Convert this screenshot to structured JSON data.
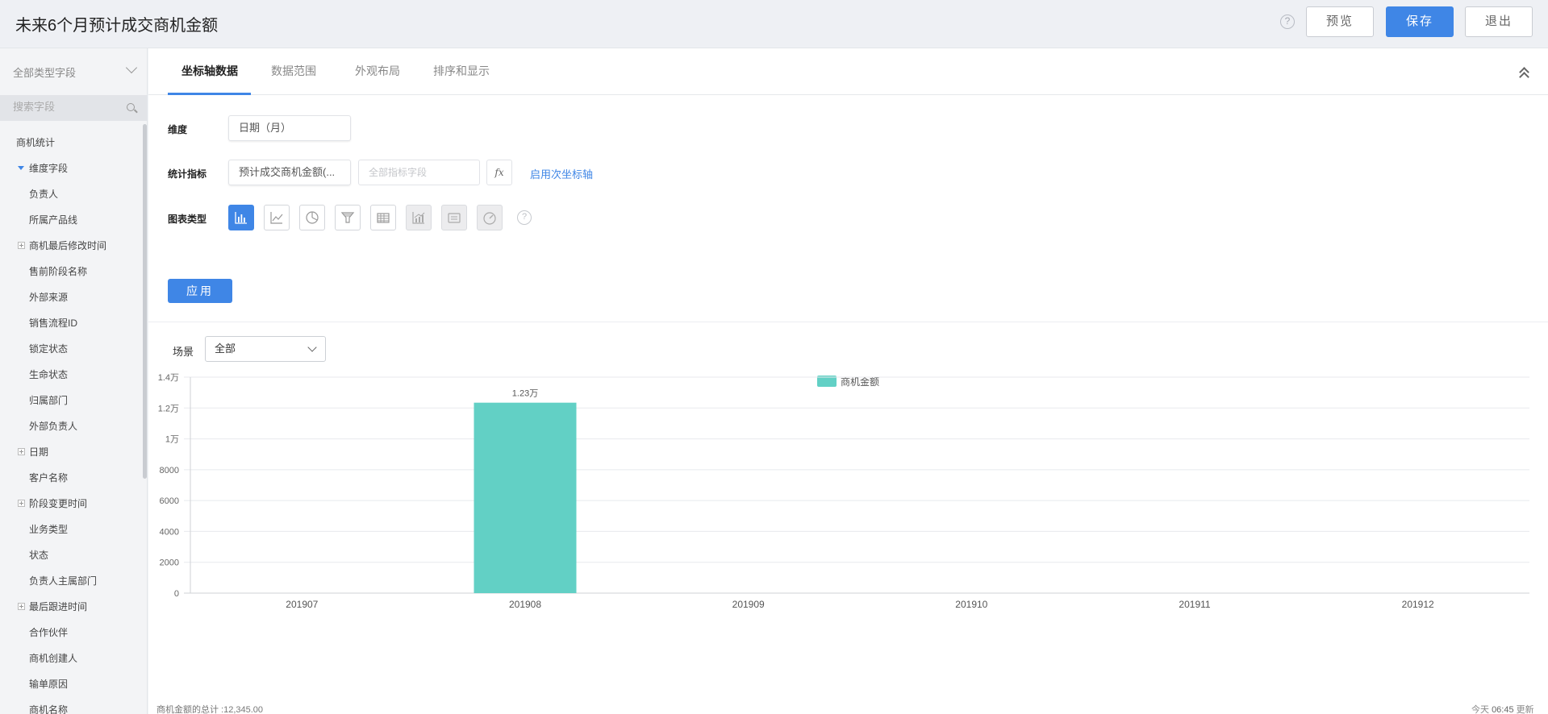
{
  "header": {
    "title": "未来6个月预计成交商机金额",
    "help": "?",
    "preview_label": "预览",
    "save_label": "保存",
    "exit_label": "退出"
  },
  "sidebar": {
    "type_select": "全部类型字段",
    "search_placeholder": "搜索字段",
    "items": [
      {
        "label": "商机统计",
        "kind": "root"
      },
      {
        "label": "维度字段",
        "kind": "expanded"
      },
      {
        "label": "负责人",
        "kind": "leaf"
      },
      {
        "label": "所属产品线",
        "kind": "leaf"
      },
      {
        "label": "商机最后修改时间",
        "kind": "collapsed"
      },
      {
        "label": "售前阶段名称",
        "kind": "leaf"
      },
      {
        "label": "外部来源",
        "kind": "leaf"
      },
      {
        "label": "销售流程ID",
        "kind": "leaf"
      },
      {
        "label": "锁定状态",
        "kind": "leaf"
      },
      {
        "label": "生命状态",
        "kind": "leaf"
      },
      {
        "label": "归属部门",
        "kind": "leaf"
      },
      {
        "label": "外部负责人",
        "kind": "leaf"
      },
      {
        "label": "日期",
        "kind": "collapsed"
      },
      {
        "label": "客户名称",
        "kind": "leaf"
      },
      {
        "label": "阶段变更时间",
        "kind": "collapsed"
      },
      {
        "label": "业务类型",
        "kind": "leaf"
      },
      {
        "label": "状态",
        "kind": "leaf"
      },
      {
        "label": "负责人主属部门",
        "kind": "leaf"
      },
      {
        "label": "最后跟进时间",
        "kind": "collapsed"
      },
      {
        "label": "合作伙伴",
        "kind": "leaf"
      },
      {
        "label": "商机创建人",
        "kind": "leaf"
      },
      {
        "label": "输单原因",
        "kind": "leaf"
      },
      {
        "label": "商机名称",
        "kind": "leaf"
      }
    ]
  },
  "tabs": [
    {
      "label": "坐标轴数据",
      "active": true
    },
    {
      "label": "数据范围",
      "active": false
    },
    {
      "label": "外观布局",
      "active": false
    },
    {
      "label": "排序和显示",
      "active": false
    }
  ],
  "form": {
    "dimension_label": "维度",
    "dimension_value": "日期（月）",
    "metric_label": "统计指标",
    "metric_value": "预计成交商机金额(...",
    "metric_field_placeholder": "全部指标字段",
    "fx_label": "fx",
    "secondary_axis_link": "启用次坐标轴",
    "chart_type_label": "图表类型",
    "chart_types": [
      {
        "icon": "bar-chart-icon",
        "state": "active"
      },
      {
        "icon": "line-chart-icon",
        "state": "normal"
      },
      {
        "icon": "pie-chart-icon",
        "state": "normal"
      },
      {
        "icon": "funnel-chart-icon",
        "state": "normal"
      },
      {
        "icon": "table-chart-icon",
        "state": "normal"
      },
      {
        "icon": "combo-chart-icon",
        "state": "disabled"
      },
      {
        "icon": "card-chart-icon",
        "state": "disabled"
      },
      {
        "icon": "gauge-chart-icon",
        "state": "disabled"
      }
    ],
    "chart_type_help": "?",
    "apply_label": "应用"
  },
  "scene": {
    "label": "场景",
    "value": "全部"
  },
  "colors": {
    "accent": "#3f86e6",
    "bar": "#62d0c5"
  },
  "chart_data": {
    "type": "bar",
    "categories": [
      "201907",
      "201908",
      "201909",
      "201910",
      "201911",
      "201912"
    ],
    "series": [
      {
        "name": "商机金额",
        "values": [
          0,
          12345,
          0,
          0,
          0,
          0
        ]
      }
    ],
    "data_labels": [
      "",
      "1.23万",
      "",
      "",
      "",
      ""
    ],
    "ylim": [
      0,
      14000
    ],
    "yticks": [
      0,
      2000,
      4000,
      6000,
      8000,
      10000,
      12000,
      14000
    ],
    "ytick_labels": [
      "0",
      "2000",
      "4000",
      "6000",
      "8000",
      "1万",
      "1.2万",
      "1.4万"
    ],
    "grid": true,
    "legend_position": "top-center"
  },
  "footer": {
    "total": "商机金额的总计 :12,345.00",
    "updated_prefix": "今天",
    "updated_time": "06:45",
    "updated_suffix": "更新"
  }
}
